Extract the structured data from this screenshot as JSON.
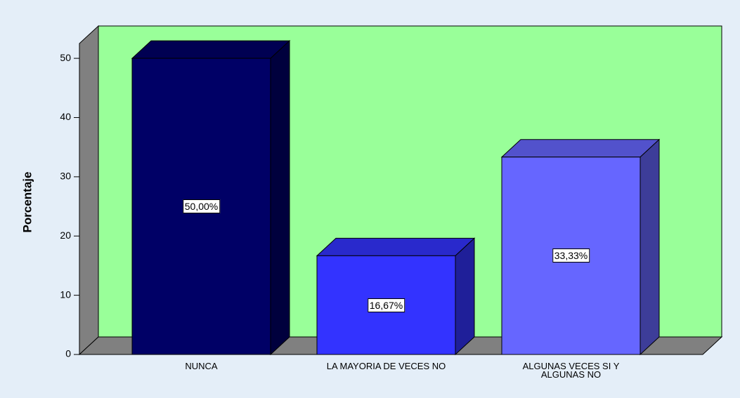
{
  "chart_data": {
    "type": "bar3d",
    "ylabel": "Porcentaje",
    "categories": [
      "NUNCA",
      "LA MAYORIA DE VECES NO",
      "ALGUNAS VECES SI Y ALGUNAS NO"
    ],
    "values": [
      50,
      16.67,
      33.33
    ],
    "value_labels": [
      "50,00%",
      "16,67%",
      "33,33%"
    ],
    "colors": [
      "#000066",
      "#3333ff",
      "#6666ff"
    ],
    "wall_color": "#99ff99",
    "ylim": [
      0,
      52.5
    ],
    "yticks": [
      0,
      10,
      20,
      30,
      40,
      50
    ]
  }
}
